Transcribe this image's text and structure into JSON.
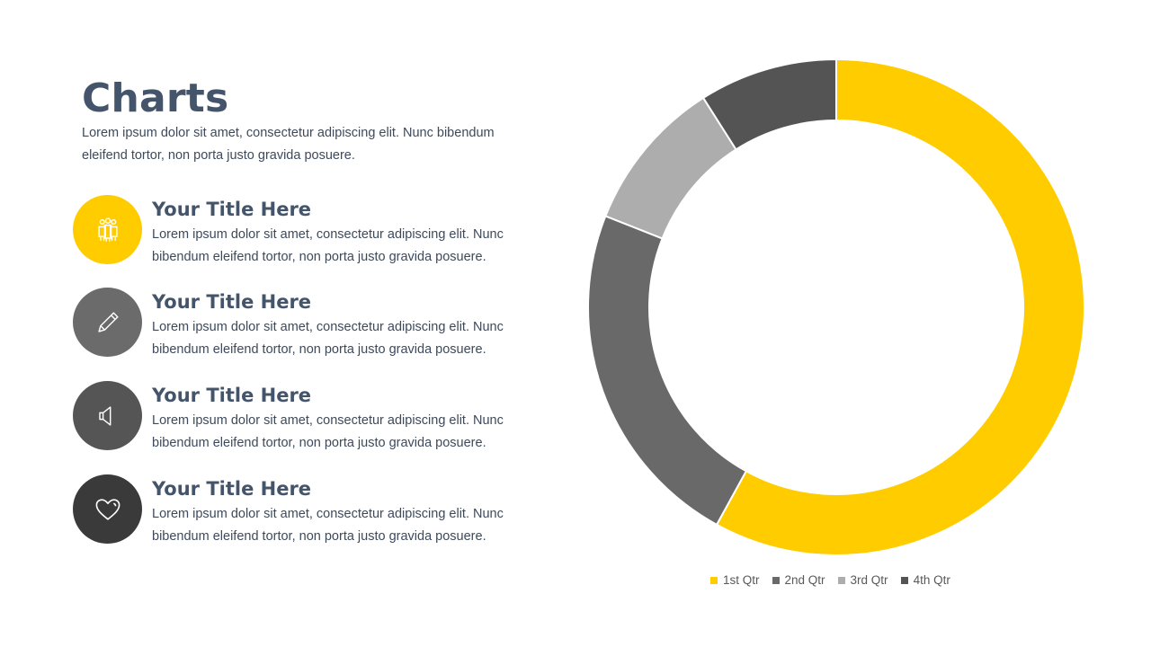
{
  "slide": {
    "title": "Charts",
    "subtitle": "Lorem ipsum dolor sit amet, consectetur adipiscing elit. Nunc bibendum eleifend tortor, non porta justo gravida posuere."
  },
  "items": [
    {
      "title": "Your Title Here",
      "text": "Lorem ipsum dolor sit amet, consectetur adipiscing elit. Nunc bibendum eleifend tortor, non porta justo gravida posuere.",
      "icon": "team-icon",
      "color": "#ffcc00"
    },
    {
      "title": "Your Title Here",
      "text": "Lorem ipsum dolor sit amet, consectetur adipiscing elit. Nunc bibendum eleifend tortor, non porta justo gravida posuere.",
      "icon": "pencil-icon",
      "color": "#6b6b6b"
    },
    {
      "title": "Your Title Here",
      "text": "Lorem ipsum dolor sit amet, consectetur adipiscing elit. Nunc bibendum eleifend tortor, non porta justo gravida posuere.",
      "icon": "megaphone-icon",
      "color": "#555555"
    },
    {
      "title": "Your Title Here",
      "text": "Lorem ipsum dolor sit amet, consectetur adipiscing elit. Nunc bibendum eleifend tortor, non porta justo gravida posuere.",
      "icon": "heart-icon",
      "color": "#3a3a3a"
    }
  ],
  "chart_data": {
    "type": "pie",
    "donut": true,
    "categories": [
      "1st Qtr",
      "2nd Qtr",
      "3rd Qtr",
      "4th Qtr"
    ],
    "values": [
      58,
      23,
      10,
      9
    ],
    "colors": [
      "#ffcc00",
      "#696969",
      "#adadad",
      "#545454"
    ],
    "legend": "bottom"
  }
}
